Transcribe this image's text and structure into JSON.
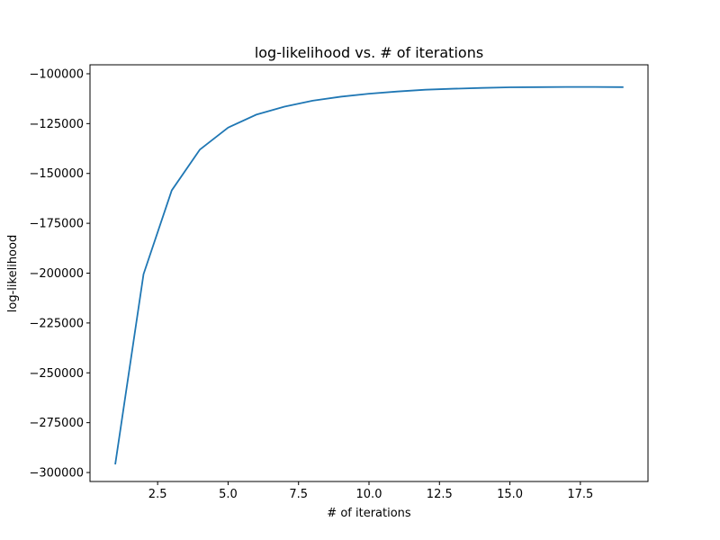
{
  "chart_data": {
    "type": "line",
    "title": "log-likelihood vs. # of iterations",
    "xlabel": "# of iterations",
    "ylabel": "log-likelihood",
    "xlim": [
      0.1,
      19.9
    ],
    "ylim": [
      -304500,
      -95500
    ],
    "grid": false,
    "x_ticks": [
      2.5,
      5.0,
      7.5,
      10.0,
      12.5,
      15.0,
      17.5
    ],
    "x_tick_labels": [
      "2.5",
      "5.0",
      "7.5",
      "10.0",
      "12.5",
      "15.0",
      "17.5"
    ],
    "y_ticks": [
      -100000,
      -125000,
      -150000,
      -175000,
      -200000,
      -225000,
      -250000,
      -275000,
      -300000
    ],
    "y_tick_labels": [
      "−100000",
      "−125000",
      "−150000",
      "−175000",
      "−200000",
      "−225000",
      "−250000",
      "−275000",
      "−300000"
    ],
    "series": [
      {
        "color": "#1f77b4",
        "x": [
          1,
          2,
          3,
          4,
          5,
          6,
          7,
          8,
          9,
          10,
          11,
          12,
          13,
          14,
          15,
          16,
          17,
          18,
          19
        ],
        "y": [
          -295500,
          -200500,
          -158500,
          -138000,
          -127000,
          -120500,
          -116500,
          -113500,
          -111500,
          -110000,
          -108900,
          -108000,
          -107500,
          -107100,
          -106800,
          -106700,
          -106600,
          -106600,
          -106700
        ]
      }
    ]
  }
}
